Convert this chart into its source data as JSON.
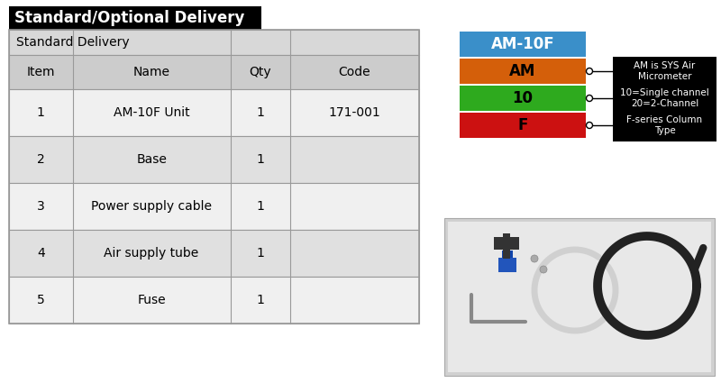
{
  "title": "Standard/Optional Delivery",
  "section_label": "Standard Delivery",
  "table_headers": [
    "Item",
    "Name",
    "Qty",
    "Code"
  ],
  "table_rows": [
    [
      "1",
      "AM-10F Unit",
      "1",
      "171-001"
    ],
    [
      "2",
      "Base",
      "1",
      ""
    ],
    [
      "3",
      "Power supply cable",
      "1",
      ""
    ],
    [
      "4",
      "Air supply tube",
      "1",
      ""
    ],
    [
      "5",
      "Fuse",
      "1",
      ""
    ]
  ],
  "color_boxes": [
    {
      "label": "AM-10F",
      "color": "#3a8fc9",
      "text_color": "#ffffff"
    },
    {
      "label": "AM",
      "color": "#d45f0a",
      "text_color": "#000000"
    },
    {
      "label": "10",
      "color": "#2eaa1e",
      "text_color": "#000000"
    },
    {
      "label": "F",
      "color": "#cc1111",
      "text_color": "#000000"
    }
  ],
  "annotations": [
    "AM is SYS Air\nMicrometer",
    "10=Single channel\n20=2-Channel",
    "F-series Column\nType"
  ],
  "title_bg": "#000000",
  "title_text_color": "#ffffff",
  "header_bg": "#cccccc",
  "row_bg_odd": "#f0f0f0",
  "row_bg_even": "#e0e0e0",
  "section_bg": "#d8d8d8",
  "border_color": "#999999",
  "annotation_bg": "#000000",
  "annotation_text_color": "#ffffff"
}
